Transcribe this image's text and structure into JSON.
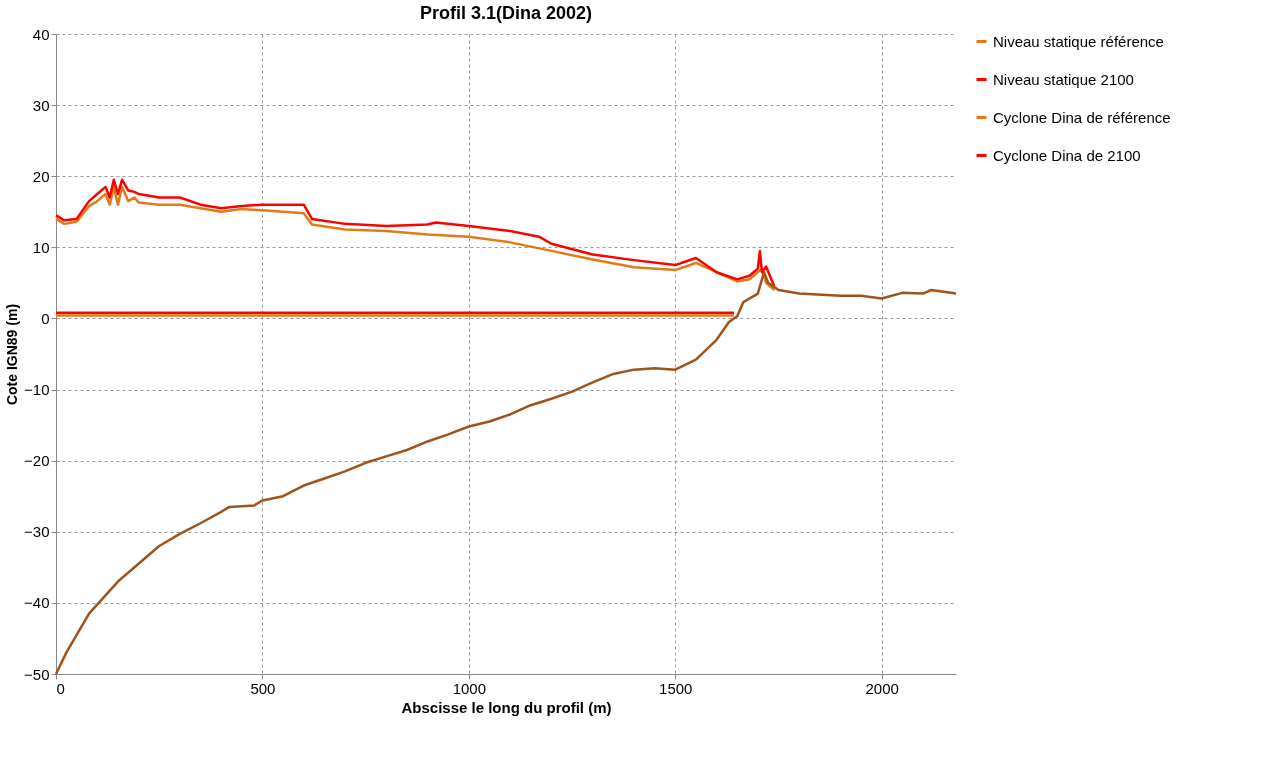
{
  "chart_data": {
    "type": "line",
    "title": "Profil 3.1(Dina 2002)",
    "xlabel": "Abscisse le long du profil (m)",
    "ylabel": "Cote IGN89 (m)",
    "xlim": [
      0,
      2180
    ],
    "xticks": [
      0,
      500,
      1000,
      1500,
      2000
    ],
    "ylim": [
      -50,
      40
    ],
    "yticks": [
      -50,
      -40,
      -30,
      -20,
      -10,
      0,
      10,
      20,
      30,
      40
    ],
    "grid": true,
    "legend": "right",
    "marker": "none",
    "line_style": "solid",
    "series": [
      {
        "name": "Niveau statique référence",
        "color": "#e07b1a",
        "x": [
          0,
          1642
        ],
        "values": [
          0.4,
          0.4
        ]
      },
      {
        "name": "Niveau statique 2100",
        "color": "#ff0000",
        "x": [
          0,
          1642
        ],
        "values": [
          0.8,
          0.8
        ]
      },
      {
        "name": "Cyclone Dina de référence",
        "color": "#e07b1a",
        "x": [
          0,
          20,
          50,
          80,
          100,
          120,
          130,
          140,
          150,
          160,
          175,
          190,
          200,
          250,
          300,
          350,
          400,
          450,
          500,
          550,
          600,
          620,
          700,
          800,
          900,
          1000,
          1100,
          1200,
          1300,
          1400,
          1500,
          1550,
          1600,
          1650,
          1680,
          1710,
          1720,
          1740
        ],
        "values": [
          14,
          13.3,
          13.6,
          15.8,
          16.5,
          17.5,
          16,
          18.5,
          16,
          18.5,
          16.5,
          17,
          16.3,
          16,
          16,
          15.5,
          15,
          15.4,
          15.2,
          15,
          14.8,
          13.2,
          12.5,
          12.3,
          11.8,
          11.5,
          10.7,
          9.5,
          8.3,
          7.2,
          6.8,
          7.8,
          6.5,
          5.2,
          5.5,
          7,
          5,
          4
        ]
      },
      {
        "name": "Cyclone Dina de 2100",
        "color": "#ff0000",
        "x": [
          0,
          20,
          50,
          80,
          100,
          120,
          130,
          140,
          150,
          160,
          175,
          190,
          200,
          250,
          300,
          350,
          400,
          450,
          500,
          550,
          600,
          620,
          700,
          800,
          900,
          920,
          1000,
          1100,
          1170,
          1200,
          1300,
          1400,
          1500,
          1550,
          1600,
          1650,
          1680,
          1700,
          1705,
          1710,
          1720,
          1740
        ],
        "values": [
          14.5,
          13.8,
          14,
          16.5,
          17.5,
          18.5,
          17,
          19.5,
          17.5,
          19.5,
          18,
          17.8,
          17.5,
          17,
          17,
          16,
          15.5,
          15.8,
          16,
          16,
          16,
          14,
          13.3,
          13,
          13.2,
          13.5,
          13,
          12.3,
          11.5,
          10.5,
          9,
          8.2,
          7.5,
          8.5,
          6.5,
          5.5,
          6,
          7,
          9.5,
          6.5,
          7.3,
          4.5
        ]
      },
      {
        "color": "#a0521a",
        "x": [
          0,
          25,
          50,
          80,
          150,
          200,
          250,
          300,
          350,
          400,
          420,
          480,
          500,
          550,
          600,
          650,
          700,
          750,
          800,
          850,
          900,
          950,
          1000,
          1050,
          1100,
          1150,
          1200,
          1250,
          1300,
          1350,
          1400,
          1450,
          1500,
          1550,
          1600,
          1630,
          1650,
          1665,
          1700,
          1715,
          1725,
          1750,
          1800,
          1900,
          1950,
          2000,
          2050,
          2100,
          2120,
          2180
        ],
        "values": [
          -50,
          -47,
          -44.5,
          -41.5,
          -37,
          -34.5,
          -32,
          -30.3,
          -28.8,
          -27.2,
          -26.5,
          -26.3,
          -25.6,
          -25,
          -23.5,
          -22.5,
          -21.5,
          -20.3,
          -19.4,
          -18.5,
          -17.3,
          -16.3,
          -15.2,
          -14.5,
          -13.5,
          -12.2,
          -11.3,
          -10.3,
          -9,
          -7.8,
          -7.2,
          -7,
          -7.2,
          -5.8,
          -3,
          -0.5,
          0.3,
          2.3,
          3.5,
          6.5,
          5,
          4,
          3.5,
          3.2,
          3.2,
          2.8,
          3.6,
          3.5,
          4,
          3.5
        ]
      }
    ]
  }
}
